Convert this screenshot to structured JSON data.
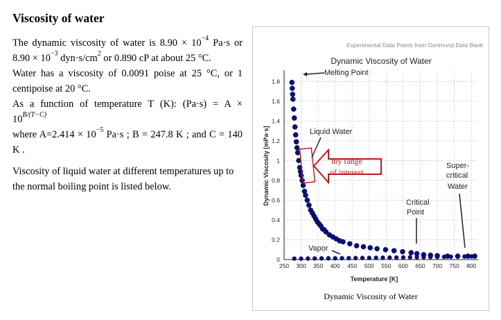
{
  "heading": "Viscosity of water",
  "paragraphs": {
    "p1a_pre": "The dynamic viscosity of water is 8.90 × 10",
    "p1a_sup": "−4",
    "p1a_post": " Pa·s or",
    "p1b_pre": "8.90 × 10",
    "p1b_sup": "−3",
    "p1b_mid": " dyn·s/cm",
    "p1b_sup2": "2",
    "p1b_post": " or 0.890 cP at about 25 °C.",
    "p2a": "Water has a viscosity of 0.0091 poise at 25 °C, or 1",
    "p2b": "centipoise at 20 °C.",
    "p3a": "As a function of temperature T (K): (Pa·s) = A ×",
    "p3b_base": "10",
    "p3b_sup": "B/(T−C)",
    "p4a_pre": "where A=2.414 × 10",
    "p4a_sup": "−5",
    "p4a_post": " Pa·s ; B = 247.8 K ; and C = 140",
    "p4b": "K .",
    "p5a": "Viscosity of liquid water at different temperatures up to",
    "p5b": "the normal boiling point is listed below."
  },
  "figure": {
    "source_note": "Experimental Data Points from Dortmund Data Bank",
    "caption": "Dynamic Viscosity of Water"
  },
  "chart_data": {
    "type": "scatter",
    "title": "Dynamic Viscosity of Water",
    "xlabel": "Temperature [K]",
    "ylabel": "Dynamic Viscosity [mPa·s]",
    "xlim": [
      250,
      820
    ],
    "ylim": [
      0,
      1.9
    ],
    "xticks": [
      250,
      300,
      350,
      400,
      450,
      500,
      550,
      600,
      650,
      700,
      750,
      800
    ],
    "yticks": [
      0,
      0.2,
      0.4,
      0.6,
      0.8,
      1,
      1.2,
      1.4,
      1.6,
      1.8
    ],
    "grid": true,
    "series": [
      {
        "x": [
          273,
          274,
          275,
          276,
          278,
          280,
          282,
          284,
          286,
          288,
          290,
          293,
          296,
          298,
          300,
          303,
          306,
          310,
          313,
          318,
          323,
          328,
          333,
          338,
          343,
          348,
          353,
          358,
          363,
          368,
          373,
          383,
          393,
          403,
          413,
          423,
          443,
          463,
          483,
          503,
          523,
          548,
          573,
          598,
          623,
          640,
          660,
          680,
          700,
          730,
          760,
          790,
          810
        ],
        "y": [
          1.79,
          1.73,
          1.67,
          1.62,
          1.52,
          1.43,
          1.34,
          1.26,
          1.19,
          1.13,
          1.08,
          1.0,
          0.93,
          0.89,
          0.85,
          0.8,
          0.75,
          0.69,
          0.65,
          0.6,
          0.55,
          0.5,
          0.47,
          0.44,
          0.41,
          0.38,
          0.36,
          0.34,
          0.31,
          0.3,
          0.28,
          0.25,
          0.23,
          0.21,
          0.19,
          0.18,
          0.16,
          0.14,
          0.13,
          0.12,
          0.11,
          0.1,
          0.09,
          0.08,
          0.07,
          0.06,
          0.05,
          0.045,
          0.04,
          0.035,
          0.035,
          0.035,
          0.035
        ]
      },
      {
        "x": [
          280,
          300,
          320,
          340,
          360,
          380,
          400,
          420,
          440,
          460,
          480,
          500,
          520,
          540,
          560,
          580,
          600,
          620,
          640,
          660,
          680,
          700,
          720,
          740,
          760,
          780,
          800,
          810
        ],
        "y": [
          0.01,
          0.01,
          0.011,
          0.011,
          0.012,
          0.013,
          0.013,
          0.014,
          0.015,
          0.016,
          0.017,
          0.017,
          0.018,
          0.019,
          0.02,
          0.021,
          0.022,
          0.023,
          0.024,
          0.025,
          0.026,
          0.027,
          0.028,
          0.029,
          0.03,
          0.031,
          0.032,
          0.033
        ]
      }
    ],
    "annotations": [
      "Melting Point",
      "Liquid Water",
      "my range of interest",
      "Vapor",
      "Critical Point",
      "Super- critical Water"
    ]
  },
  "colors": {
    "points": "#0a0f7a",
    "annotation_red": "#c0161d"
  }
}
